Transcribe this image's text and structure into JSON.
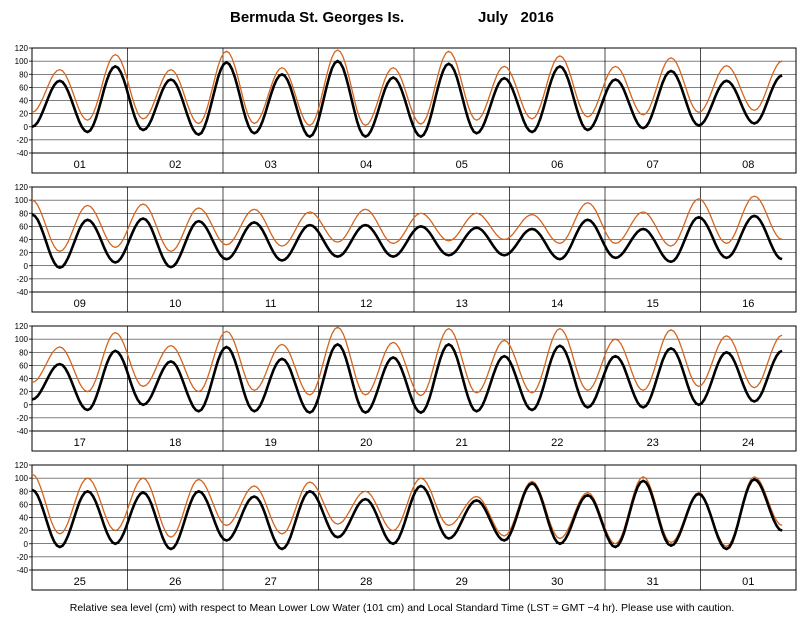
{
  "chart_data": {
    "type": "line",
    "title_station": "Bermuda St. Georges Is.",
    "title_period": "July   2016",
    "footnote": "Relative sea level (cm) with respect to Mean Lower Low Water (101 cm) and Local Standard Time (LST = GMT −4 hr). Please use with caution.",
    "ylim": [
      -40,
      120
    ],
    "yticks": [
      -40,
      -20,
      0,
      20,
      40,
      60,
      80,
      100,
      120
    ],
    "grid": true,
    "legend": "none",
    "colors": {
      "predicted": "#000000",
      "observed": "#d4651e"
    },
    "panels": [
      {
        "days": [
          "01",
          "02",
          "03",
          "04",
          "05",
          "06",
          "07",
          "08"
        ],
        "predicted": [
          0,
          70,
          -8,
          92,
          -5,
          72,
          -12,
          98,
          -10,
          80,
          -15,
          100,
          -15,
          75,
          -15,
          96,
          -10,
          74,
          -8,
          92,
          -5,
          72,
          -2,
          85,
          2,
          70,
          5,
          78
        ],
        "observed": [
          22,
          87,
          10,
          110,
          12,
          87,
          5,
          115,
          5,
          90,
          2,
          117,
          2,
          90,
          4,
          115,
          10,
          92,
          12,
          108,
          15,
          92,
          18,
          105,
          22,
          93,
          25,
          100
        ]
      },
      {
        "days": [
          "09",
          "10",
          "11",
          "12",
          "13",
          "14",
          "15",
          "16"
        ],
        "predicted": [
          78,
          -3,
          70,
          5,
          72,
          -2,
          68,
          10,
          66,
          8,
          62,
          14,
          62,
          14,
          60,
          16,
          58,
          16,
          56,
          10,
          70,
          12,
          56,
          6,
          74,
          12,
          76,
          10
        ],
        "observed": [
          100,
          22,
          92,
          28,
          94,
          22,
          88,
          32,
          86,
          30,
          82,
          36,
          86,
          34,
          80,
          38,
          80,
          40,
          78,
          34,
          96,
          34,
          82,
          30,
          102,
          34,
          106,
          40
        ]
      },
      {
        "days": [
          "17",
          "18",
          "19",
          "20",
          "21",
          "22",
          "23",
          "24"
        ],
        "predicted": [
          8,
          62,
          -8,
          82,
          0,
          66,
          -10,
          88,
          -10,
          70,
          -12,
          92,
          -12,
          72,
          -12,
          92,
          -10,
          74,
          -8,
          90,
          -4,
          74,
          -4,
          86,
          0,
          80,
          5,
          82
        ],
        "observed": [
          34,
          88,
          20,
          110,
          28,
          90,
          20,
          112,
          22,
          92,
          15,
          118,
          15,
          95,
          14,
          116,
          18,
          98,
          18,
          116,
          22,
          100,
          22,
          114,
          28,
          105,
          26,
          106
        ]
      },
      {
        "days": [
          "25",
          "26",
          "27",
          "28",
          "29",
          "30",
          "31",
          "01"
        ],
        "predicted": [
          82,
          -5,
          80,
          0,
          78,
          -8,
          80,
          5,
          72,
          -8,
          80,
          10,
          68,
          0,
          88,
          8,
          66,
          5,
          92,
          0,
          74,
          -5,
          96,
          -3,
          76,
          -8,
          98,
          20
        ],
        "observed": [
          106,
          15,
          100,
          20,
          100,
          10,
          98,
          28,
          88,
          15,
          94,
          30,
          80,
          20,
          100,
          28,
          72,
          12,
          95,
          8,
          78,
          0,
          102,
          2,
          78,
          -4,
          102,
          28
        ]
      }
    ]
  }
}
